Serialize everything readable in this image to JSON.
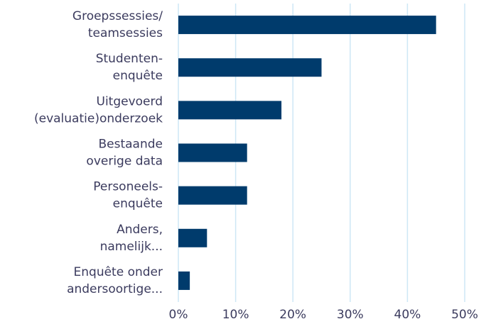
{
  "chart_data": {
    "type": "barh",
    "categories": [
      [
        "Groepssessies/",
        "teamsessies"
      ],
      [
        "Studenten-",
        "enquête"
      ],
      [
        "Uitgevoerd",
        "(evaluatie)onderzoek"
      ],
      [
        "Bestaande",
        "overige data"
      ],
      [
        "Personeels-",
        "enquête"
      ],
      [
        "Anders,",
        "namelijk..."
      ],
      [
        "Enquête onder",
        "andersoortige..."
      ]
    ],
    "values": [
      45,
      25,
      18,
      12,
      12,
      5,
      2
    ],
    "color": "#003b6c",
    "xlim": [
      0,
      50
    ],
    "xticks": [
      {
        "value": 0,
        "label": "0%"
      },
      {
        "value": 10,
        "label": "10%"
      },
      {
        "value": 20,
        "label": "20%"
      },
      {
        "value": 30,
        "label": "30%"
      },
      {
        "value": 40,
        "label": "40%"
      },
      {
        "value": 50,
        "label": "50%"
      }
    ],
    "grid": true
  }
}
